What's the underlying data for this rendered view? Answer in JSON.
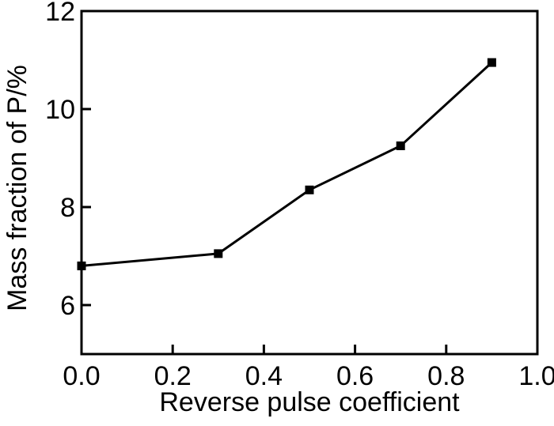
{
  "chart_data": {
    "type": "line",
    "title": "",
    "xlabel": "Reverse pulse coefficient",
    "ylabel": "Mass fraction of P/%",
    "xlim": [
      0.0,
      1.0
    ],
    "ylim": [
      5,
      12
    ],
    "xticks": [
      0.0,
      0.2,
      0.4,
      0.6,
      0.8,
      1.0
    ],
    "xtick_labels": [
      "0.0",
      "0.2",
      "0.4",
      "0.6",
      "0.8",
      "1.0"
    ],
    "yticks": [
      6,
      8,
      10,
      12
    ],
    "ytick_labels": [
      "6",
      "8",
      "10",
      "12"
    ],
    "grid": false,
    "legend": false,
    "series": [
      {
        "name": "Mass fraction of P",
        "marker": "square",
        "x": [
          0.0,
          0.3,
          0.5,
          0.7,
          0.9
        ],
        "y": [
          6.8,
          7.05,
          8.35,
          9.25,
          10.95
        ]
      }
    ]
  },
  "colors": {
    "background": "#ffffff",
    "axis": "#000000",
    "line": "#000000",
    "marker": "#000000",
    "text": "#000000"
  }
}
